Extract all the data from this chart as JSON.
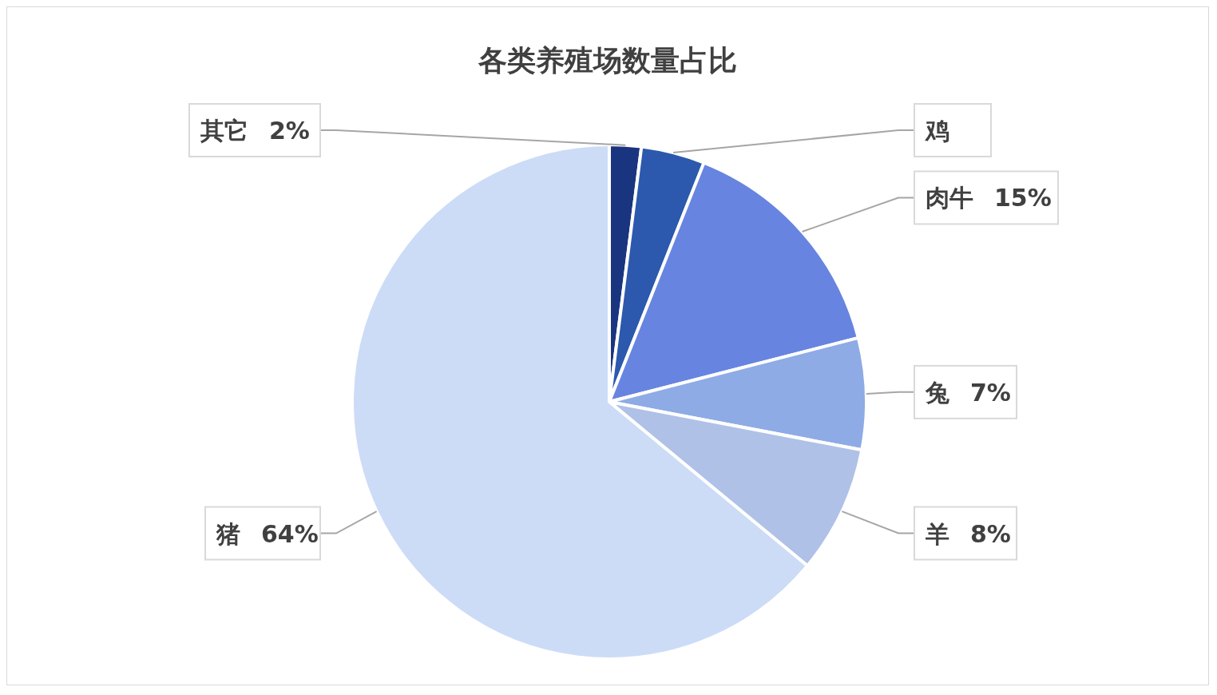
{
  "chart_data": {
    "type": "pie",
    "title": "各类养殖场数量占比",
    "categories": [
      "其它",
      "鸡",
      "肉牛",
      "兔",
      "羊",
      "猪"
    ],
    "values": [
      2,
      4,
      15,
      7,
      8,
      64
    ],
    "colors": [
      "#1a3580",
      "#2c59ad",
      "#6784e0",
      "#8eabe6",
      "#b0c1e8",
      "#ccdcf7"
    ],
    "value_labels": [
      "2%",
      null,
      "15%",
      "7%",
      "8%",
      "64%"
    ]
  }
}
